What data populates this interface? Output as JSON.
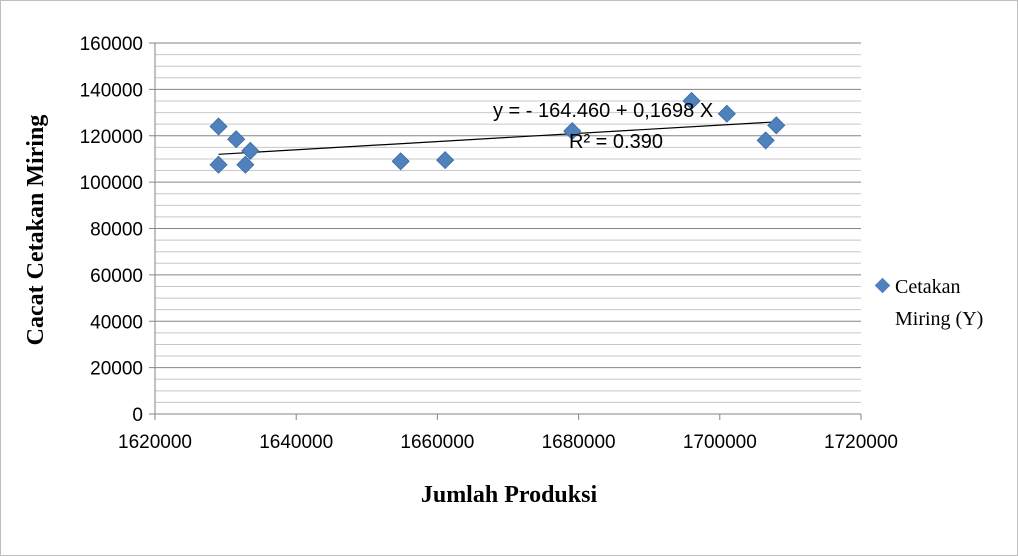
{
  "chart_data": {
    "type": "scatter",
    "title": "",
    "xlabel": "Jumlah Produksi",
    "ylabel": "Cacat Cetakan Miring",
    "xlim": [
      1620000,
      1720000
    ],
    "ylim": [
      0,
      160000
    ],
    "x_ticks": [
      "1620000",
      "1640000",
      "1660000",
      "1680000",
      "1700000",
      "1720000"
    ],
    "y_ticks": [
      "0",
      "20000",
      "40000",
      "60000",
      "80000",
      "100000",
      "120000",
      "140000",
      "160000"
    ],
    "grid": true,
    "legend_position": "right",
    "series": [
      {
        "name": "Cetakan Miring (Y)",
        "color": "#4f81bd",
        "marker": "diamond",
        "points": [
          {
            "x": 1629000,
            "y": 124000
          },
          {
            "x": 1629000,
            "y": 107500
          },
          {
            "x": 1631500,
            "y": 118500
          },
          {
            "x": 1632800,
            "y": 107500
          },
          {
            "x": 1633500,
            "y": 113500
          },
          {
            "x": 1654800,
            "y": 109000
          },
          {
            "x": 1661100,
            "y": 109500
          },
          {
            "x": 1679100,
            "y": 122000
          },
          {
            "x": 1696000,
            "y": 135000
          },
          {
            "x": 1701000,
            "y": 129500
          },
          {
            "x": 1706500,
            "y": 118000
          },
          {
            "x": 1708000,
            "y": 124500
          }
        ]
      }
    ],
    "trendline": {
      "type": "linear",
      "x_range": [
        1629000,
        1708000
      ],
      "y_start": 112000,
      "y_end": 126000,
      "equation": "y = - 164.460 + 0,1698 X",
      "r_squared": "R² = 0.390"
    },
    "legend_lines": [
      "Cetakan",
      "Miring (Y)"
    ]
  }
}
